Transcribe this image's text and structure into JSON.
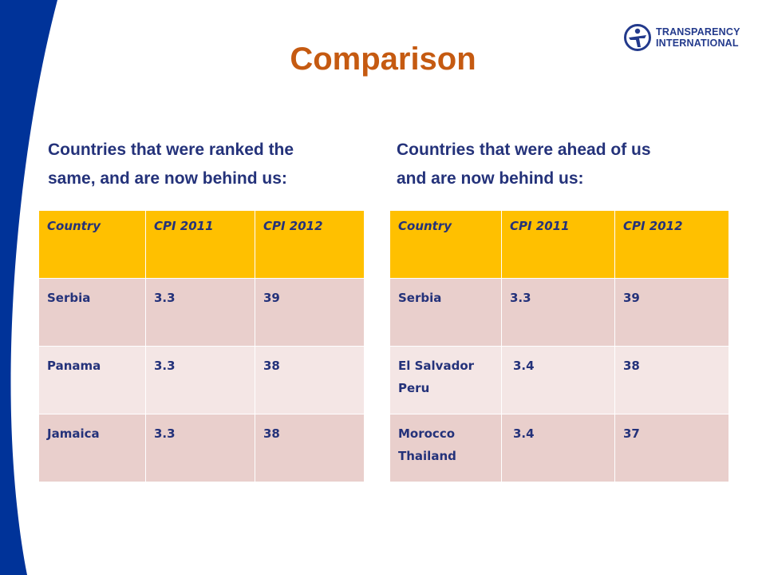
{
  "colors": {
    "band": "#003399",
    "title": "#c55a11",
    "heading": "#24327a",
    "header_fill": "#ffc000",
    "row_dark": "#e9cfcc",
    "row_light": "#f4e6e5"
  },
  "logo": {
    "line1": "TRANSPARENCY",
    "line2": "INTERNATIONAL",
    "icon": "ti-globe-figure-icon"
  },
  "title": "Comparison",
  "left": {
    "heading_line1": "Countries that were ranked the",
    "heading_line2": "same, and are now behind us:",
    "table": {
      "headers": [
        "Country",
        "CPI 2011",
        "CPI 2012"
      ],
      "rows": [
        [
          "Serbia",
          "3.3",
          "39"
        ],
        [
          "Panama",
          "3.3",
          "38"
        ],
        [
          "Jamaica",
          "3.3",
          "38"
        ]
      ]
    }
  },
  "right": {
    "heading_line1": "Countries that were ahead of us",
    "heading_line2": "and are now behind us:",
    "table": {
      "headers": [
        "Country",
        "CPI 2011",
        "CPI 2012"
      ],
      "rows": [
        [
          "Serbia",
          "3.3",
          "39"
        ],
        [
          "El Salvador\nPeru",
          "3.4",
          "38"
        ],
        [
          "Morocco\nThailand",
          "3.4",
          "37"
        ]
      ]
    }
  }
}
